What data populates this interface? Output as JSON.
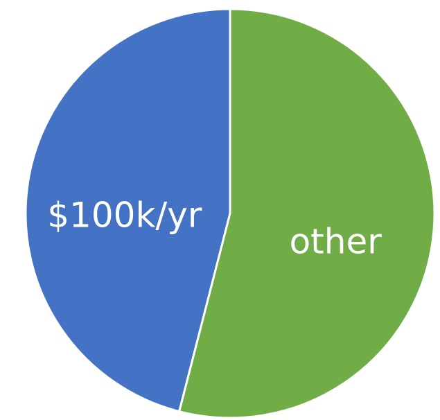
{
  "chart_data": {
    "type": "pie",
    "categories": [
      "$100k/yr",
      "other"
    ],
    "values": [
      46,
      54
    ],
    "colors": [
      "#4472c4",
      "#70ad47"
    ]
  }
}
